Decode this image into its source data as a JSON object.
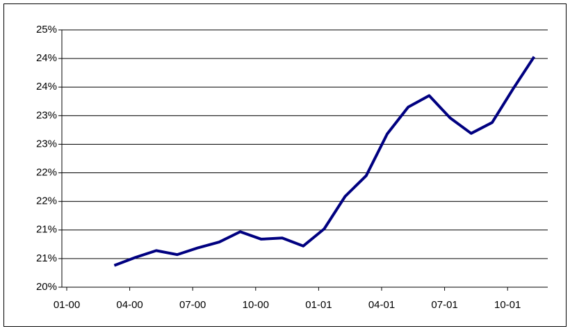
{
  "chart_data": {
    "type": "line",
    "x": [
      "03-00",
      "04-00",
      "05-00",
      "06-00",
      "07-00",
      "08-00",
      "09-00",
      "10-00",
      "11-00",
      "12-00",
      "01-01",
      "02-01",
      "03-01",
      "04-01",
      "05-01",
      "06-01",
      "07-01",
      "08-01",
      "09-01",
      "10-01",
      "11-01"
    ],
    "series": [
      {
        "color": "#000080",
        "values": [
          20.38,
          20.52,
          20.64,
          20.57,
          20.69,
          20.79,
          20.97,
          20.84,
          20.86,
          20.72,
          21.02,
          21.59,
          21.95,
          22.68,
          23.15,
          23.35,
          22.96,
          22.69,
          22.88,
          23.47,
          24.03
        ]
      }
    ],
    "xticks": [
      "01-00",
      "04-00",
      "07-00",
      "10-00",
      "01-01",
      "04-01",
      "07-01",
      "10-01"
    ],
    "ylim": [
      20,
      24.5
    ],
    "yticks": [
      {
        "value": 20,
        "label": "20%"
      },
      {
        "value": 20.5,
        "label": "21%"
      },
      {
        "value": 21,
        "label": "21%"
      },
      {
        "value": 21.5,
        "label": "22%"
      },
      {
        "value": 22,
        "label": "22%"
      },
      {
        "value": 22.5,
        "label": "23%"
      },
      {
        "value": 23,
        "label": "23%"
      },
      {
        "value": 23.5,
        "label": "24%"
      },
      {
        "value": 24,
        "label": "24%"
      },
      {
        "value": 24.5,
        "label": "25%"
      }
    ],
    "grid": true
  }
}
